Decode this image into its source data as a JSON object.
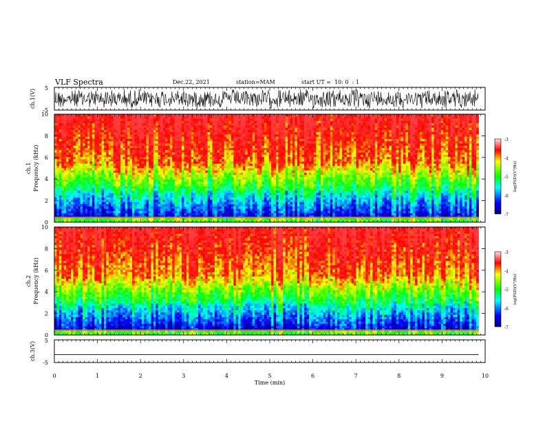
{
  "header": {
    "title": "VLF Spectra",
    "date": "Dec.22, 2021",
    "station": "station=MAM",
    "start_ut": "start UT =  10: 0  : 1"
  },
  "chart_data": [
    {
      "type": "line",
      "name": "ch1-waveform",
      "ylabel": "ch.1(V)",
      "yticks": [
        "5",
        "-5"
      ],
      "ylim": [
        -5,
        5
      ],
      "xlim": [
        0,
        10
      ],
      "description_values": "dense broadband noise waveform"
    },
    {
      "type": "heatmap",
      "name": "ch1-spectrogram",
      "ylabel_top": "ch.1",
      "ylabel": "Frequency (kHz)",
      "yticks": [
        "0",
        "2",
        "4",
        "6",
        "8",
        "10"
      ],
      "ylim": [
        0,
        10
      ],
      "xlim": [
        0,
        9.85
      ],
      "colorbar": {
        "label": "log(PSD)(V²/Hz)",
        "ticks": [
          "-3",
          "-4",
          "-5",
          "-6",
          "-7"
        ],
        "range": [
          -7,
          -3
        ]
      }
    },
    {
      "type": "heatmap",
      "name": "ch2-spectrogram",
      "ylabel_top": "ch.2",
      "ylabel": "Frequency (kHz)",
      "yticks": [
        "0",
        "2",
        "4",
        "6",
        "8",
        "10"
      ],
      "ylim": [
        0,
        10
      ],
      "xlim": [
        0,
        9.85
      ],
      "colorbar": {
        "label": "log(PSD)(V²/Hz)",
        "ticks": [
          "-3",
          "-4",
          "-5",
          "-6",
          "-7"
        ],
        "range": [
          -7,
          -3
        ]
      }
    },
    {
      "type": "line",
      "name": "ch3-waveform",
      "ylabel": "ch.3(V)",
      "yticks": [
        "5",
        "-5"
      ],
      "ylim": [
        -5,
        5
      ],
      "xlim": [
        0,
        10
      ],
      "x": [
        0,
        9.85
      ],
      "y": [
        -1.5,
        -1.5
      ]
    }
  ],
  "xaxis": {
    "label": "Time (min)",
    "ticks": [
      "0",
      "1",
      "2",
      "3",
      "4",
      "5",
      "6",
      "7",
      "8",
      "9",
      "10"
    ]
  }
}
